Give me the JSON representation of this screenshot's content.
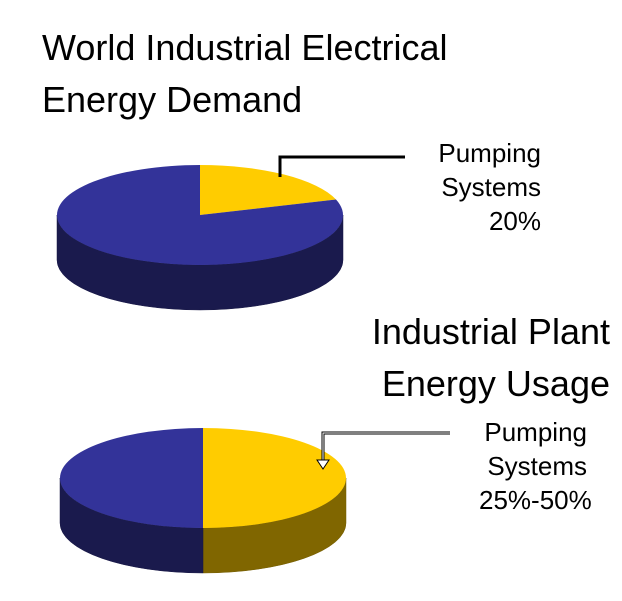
{
  "chart_data": [
    {
      "type": "pie3d",
      "title": "World Industrial Electrical Energy Demand",
      "categories": [
        "Pumping Systems",
        null
      ],
      "values": [
        20,
        80
      ],
      "value_labels": [
        "20%",
        null
      ],
      "colors": [
        "#ffcc00",
        "#333399"
      ]
    },
    {
      "type": "pie3d",
      "title": "Industrial Plant Energy Usage",
      "categories": [
        "Pumping Systems",
        null
      ],
      "values": [
        50,
        50
      ],
      "value_labels": [
        "25%-50%",
        null
      ],
      "colors": [
        "#ffcc00",
        "#333399"
      ]
    }
  ]
}
